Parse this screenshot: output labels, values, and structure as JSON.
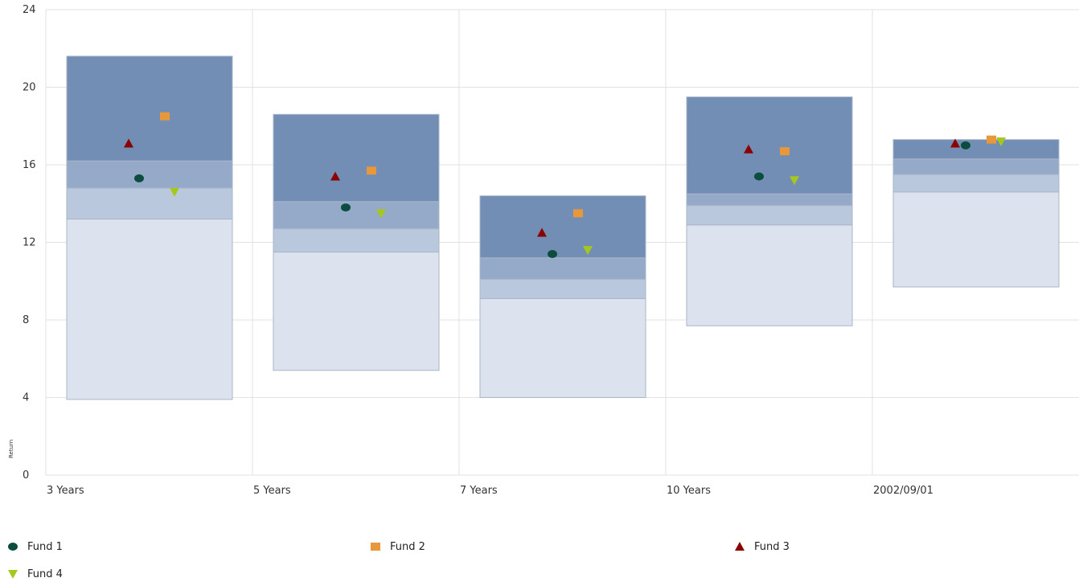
{
  "chart_data": {
    "type": "floating-bar-quartile",
    "title": "",
    "xlabel": "",
    "ylabel": "Return",
    "ylim": [
      0,
      24
    ],
    "yticks": [
      0,
      4,
      8,
      12,
      16,
      20,
      24
    ],
    "grid": true,
    "legend_position": "bottom",
    "categories": [
      "3 Years",
      "5 Years",
      "7 Years",
      "10 Years",
      "2002/09/01"
    ],
    "quartiles": [
      {
        "category": "3 Years",
        "low": 3.9,
        "q1": 13.2,
        "median": 14.8,
        "q3": 16.2,
        "high": 21.6
      },
      {
        "category": "5 Years",
        "low": 5.4,
        "q1": 11.5,
        "median": 12.7,
        "q3": 14.1,
        "high": 18.6
      },
      {
        "category": "7 Years",
        "low": 4.0,
        "q1": 9.1,
        "median": 10.1,
        "q3": 11.2,
        "high": 14.4
      },
      {
        "category": "10 Years",
        "low": 7.7,
        "q1": 12.9,
        "median": 13.9,
        "q3": 14.5,
        "high": 19.5
      },
      {
        "category": "2002/09/01",
        "low": 9.7,
        "q1": 14.6,
        "median": 15.5,
        "q3": 16.3,
        "high": 17.3
      }
    ],
    "band_colors": [
      "#dde3ee",
      "#b9c8dc",
      "#95a9c8",
      "#728eb5"
    ],
    "band_stroke": "#aab6c8",
    "grid_color": "#e2e2e2",
    "series": [
      {
        "name": "Fund 1",
        "marker": "circle",
        "color": "#0d4d3f",
        "values": [
          15.3,
          13.8,
          11.4,
          15.4,
          17.0
        ]
      },
      {
        "name": "Fund 2",
        "marker": "square",
        "color": "#e8973a",
        "values": [
          18.5,
          15.7,
          13.5,
          16.7,
          17.3
        ]
      },
      {
        "name": "Fund 3",
        "marker": "triangle-up",
        "color": "#8b0000",
        "values": [
          17.1,
          15.4,
          12.5,
          16.8,
          17.1
        ]
      },
      {
        "name": "Fund 4",
        "marker": "triangle-down",
        "color": "#a6c81d",
        "values": [
          14.6,
          13.5,
          11.6,
          15.2,
          17.2
        ]
      }
    ]
  }
}
